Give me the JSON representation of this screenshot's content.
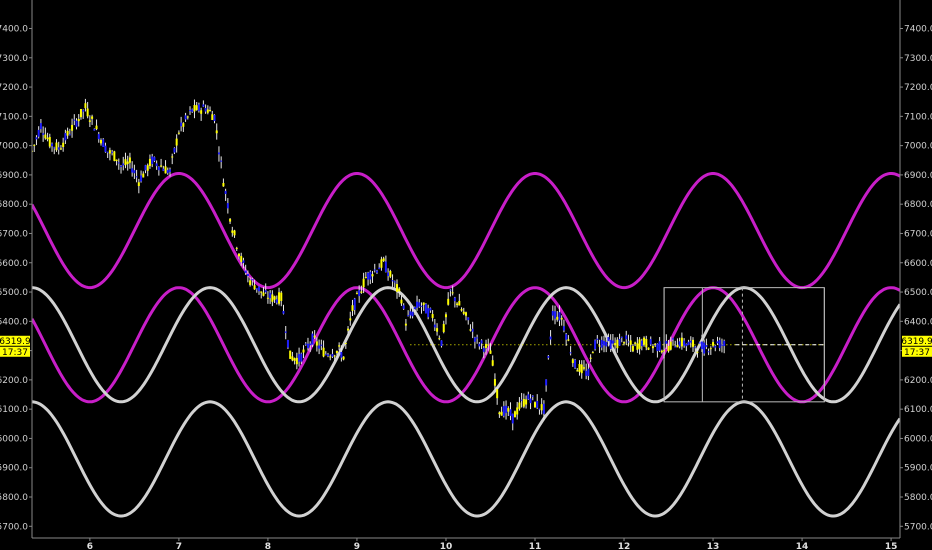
{
  "chart_data": {
    "type": "line",
    "title": "",
    "xlabel": "",
    "ylabel": "",
    "xlim": [
      5.35,
      15.1
    ],
    "ylim": [
      5660,
      7470
    ],
    "x_ticks": [
      6,
      7,
      8,
      9,
      10,
      11,
      12,
      13,
      14,
      15
    ],
    "x_tick_labels": [
      "6",
      "7",
      "8",
      "9",
      "10",
      "11",
      "12",
      "13",
      "14",
      "15"
    ],
    "y_ticks": [
      5700,
      5800,
      5900,
      6000,
      6100,
      6200,
      6300,
      6400,
      6500,
      6600,
      6700,
      6800,
      6900,
      7000,
      7100,
      7200,
      7300,
      7400
    ],
    "y_tick_labels": [
      "5700.0",
      "5800.0",
      "5900.0",
      "6000.0",
      "6100.0",
      "6200.0",
      "6300.0",
      "6400.0",
      "6500.0",
      "6600.0",
      "6700.0",
      "6800.0",
      "6900.0",
      "7000.0",
      "7100.0",
      "7200.0",
      "7300.0",
      "7400.0"
    ],
    "grid": false,
    "current_price": {
      "label": "6319.9",
      "time": "17:37",
      "value": 6319.9,
      "color": "#ffff00"
    },
    "price_series": {
      "name": "",
      "up_color": "#ffff00",
      "down_color": "#1f1fff",
      "x": [
        5.35,
        5.45,
        5.55,
        5.65,
        5.8,
        5.95,
        6.1,
        6.2,
        6.3,
        6.35,
        6.45,
        6.55,
        6.7,
        6.9,
        7.0,
        7.15,
        7.3,
        7.4,
        7.5,
        7.6,
        7.7,
        7.8,
        7.9,
        7.95,
        8.05,
        8.15,
        8.25,
        8.35,
        8.5,
        8.65,
        8.8,
        8.85,
        8.95,
        9.1,
        9.3,
        9.5,
        9.55,
        9.7,
        9.85,
        9.95,
        10.05,
        10.1,
        10.25,
        10.35,
        10.5,
        10.6,
        10.7,
        10.75,
        10.85,
        10.95,
        11.0,
        11.1,
        11.2,
        11.3,
        11.45,
        11.6,
        11.65,
        11.7,
        11.8,
        11.9,
        12.0,
        12.1,
        12.2,
        12.3,
        12.45,
        12.6,
        12.75,
        12.9,
        13.0,
        13.05,
        13.15
      ],
      "y": [
        6980,
        7070,
        7010,
        6990,
        7060,
        7130,
        7040,
        6980,
        6960,
        6930,
        6940,
        6880,
        6950,
        6910,
        7050,
        7120,
        7130,
        7100,
        6880,
        6720,
        6610,
        6540,
        6510,
        6490,
        6480,
        6480,
        6280,
        6270,
        6340,
        6290,
        6300,
        6280,
        6440,
        6550,
        6600,
        6480,
        6400,
        6460,
        6420,
        6330,
        6500,
        6480,
        6400,
        6330,
        6300,
        6100,
        6090,
        6070,
        6120,
        6140,
        6120,
        6100,
        6430,
        6410,
        6250,
        6220,
        6310,
        6330,
        6330,
        6320,
        6340,
        6310,
        6330,
        6320,
        6310,
        6330,
        6320,
        6310,
        6320,
        6325,
        6320
      ]
    },
    "sine_waves": [
      {
        "name": "",
        "color": "#c81ec8",
        "center": 6710,
        "amplitude": 195,
        "period": 2.0,
        "phase_peak_x": 7.0
      },
      {
        "name": "",
        "color": "#c81ec8",
        "center": 6320,
        "amplitude": 195,
        "period": 2.0,
        "phase_peak_x": 7.0
      },
      {
        "name": "",
        "color": "#d2d2d2",
        "center": 6320,
        "amplitude": 195,
        "period": 2.0,
        "phase_peak_x": 5.35
      },
      {
        "name": "",
        "color": "#d2d2d2",
        "center": 5930,
        "amplitude": 195,
        "period": 2.0,
        "phase_peak_x": 5.35
      }
    ],
    "annotations": {
      "price_level_line": {
        "x_start": 9.6,
        "x_end": 14.25,
        "y": 6320,
        "color": "#ffff00",
        "style": "dotted"
      },
      "projection_line": {
        "x_start": 13.25,
        "x_end": 14.25,
        "y": 6320,
        "color": "#ffffff",
        "style": "dashed"
      },
      "range_box": {
        "x_start": 12.45,
        "x_end": 14.25,
        "y_low": 6125,
        "y_high": 6515,
        "color": "#bbbbbb"
      },
      "vertical_markers": [
        12.45,
        12.88,
        13.33,
        14.25
      ],
      "dashed_vertical": {
        "x": 13.33,
        "y_low": 6125,
        "y_high": 6515
      }
    }
  }
}
